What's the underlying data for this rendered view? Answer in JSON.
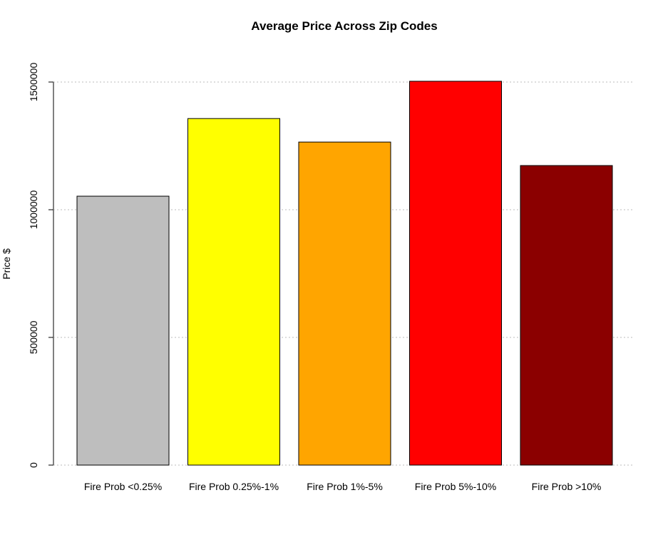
{
  "chart_data": {
    "type": "bar",
    "title": "Average Price Across Zip Codes",
    "y_label": "Price $",
    "categories": [
      "Fire Prob <0.25%",
      "Fire Prob 0.25%-1%",
      "Fire Prob 1%-5%",
      "Fire Prob 5%-10%",
      "Fire Prob >10%"
    ],
    "values": [
      1053000,
      1357000,
      1265000,
      1503000,
      1173000
    ],
    "colors": [
      "#bebebe",
      "#ffff00",
      "#ffa500",
      "#ff0000",
      "#8b0000"
    ],
    "ylim": [
      0,
      1500000
    ],
    "yticks": [
      0,
      500000,
      1000000,
      1500000
    ],
    "grid": true
  }
}
